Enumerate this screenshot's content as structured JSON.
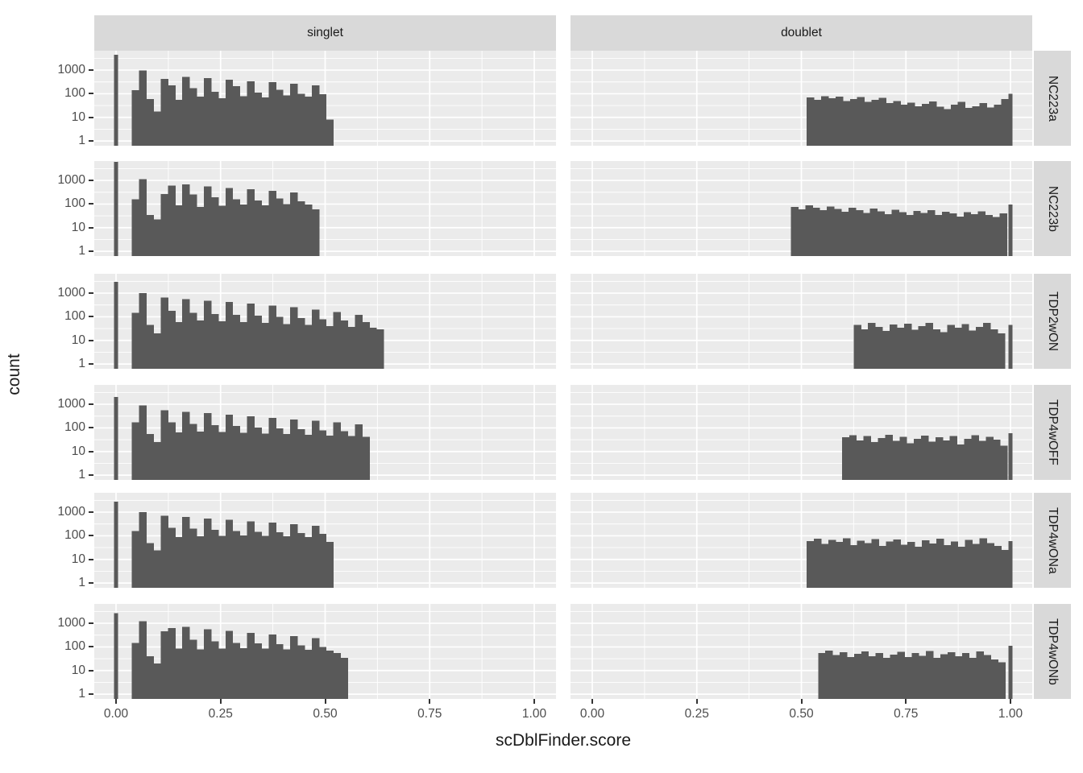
{
  "figure": {
    "x_title": "scDblFinder.score",
    "y_title": "count",
    "col_facets": [
      "singlet",
      "doublet"
    ],
    "row_facets": [
      "NC223a",
      "NC223b",
      "TDP2wON",
      "TDP4wOFF",
      "TDP4wONa",
      "TDP4wONb"
    ],
    "x_tick_labels": [
      "0.00",
      "0.25",
      "0.50",
      "0.75",
      "1.00"
    ],
    "y_tick_labels": [
      "1000",
      "100",
      "10",
      "1"
    ]
  },
  "colors": {
    "bar": "#595959",
    "panel_background": "#ebebeb",
    "gridline": "#ffffff",
    "strip_background": "#d9d9d9",
    "axis_text": "#4d4d4d",
    "title_text": "#1a1a1a",
    "tick_mark": "#333333"
  },
  "chart_data": {
    "type": "bar",
    "subtype": "faceted-histogram",
    "title": "",
    "xlabel": "scDblFinder.score",
    "ylabel": "count",
    "y_scale": "log10",
    "x_ticks": [
      0,
      0.25,
      0.5,
      0.75,
      1.0
    ],
    "x_minor_ticks": [
      0.125,
      0.375,
      0.625,
      0.875
    ],
    "y_ticks": [
      1,
      10,
      100,
      1000
    ],
    "y_minor_ticks_log10": [
      0.5,
      1.5,
      2.5,
      3.5
    ],
    "ylim_log10": [
      -0.2,
      3.82
    ],
    "xlim": [
      -0.055,
      1.055
    ],
    "grid": true,
    "legend": "none",
    "binwidth": 0.0172,
    "facet_cols": [
      "singlet",
      "doublet"
    ],
    "facet_rows": [
      "NC223a",
      "NC223b",
      "TDP2wON",
      "TDP4wOFF",
      "TDP4wONa",
      "TDP4wONb"
    ],
    "rows": [
      {
        "label": "NC223a",
        "singlet": {
          "zero_spike_count": 4500,
          "bins_start": 0.038,
          "counts": [
            140,
            950,
            60,
            18,
            420,
            230,
            55,
            520,
            170,
            75,
            460,
            120,
            65,
            390,
            210,
            80,
            340,
            110,
            70,
            310,
            150,
            85,
            270,
            100,
            75,
            230,
            95,
            8
          ]
        },
        "doublet": {
          "bins_start": 0.513,
          "counts": [
            70,
            55,
            80,
            65,
            75,
            50,
            60,
            72,
            45,
            55,
            68,
            40,
            50,
            35,
            42,
            30,
            38,
            48,
            28,
            22,
            35,
            45,
            25,
            30,
            40,
            26,
            34,
            60
          ],
          "spike_at_1_count": 100
        }
      },
      {
        "label": "NC223b",
        "singlet": {
          "zero_spike_count": 6000,
          "bins_start": 0.038,
          "counts": [
            160,
            1150,
            35,
            22,
            270,
            600,
            90,
            680,
            250,
            75,
            560,
            190,
            85,
            480,
            160,
            95,
            420,
            140,
            90,
            360,
            170,
            100,
            310,
            130,
            95,
            60
          ]
        },
        "doublet": {
          "bins_start": 0.475,
          "counts": [
            75,
            60,
            90,
            70,
            55,
            80,
            62,
            48,
            70,
            55,
            42,
            65,
            50,
            38,
            58,
            45,
            35,
            52,
            42,
            55,
            35,
            48,
            40,
            30,
            45,
            38,
            50,
            35,
            28,
            40
          ],
          "spike_at_1_count": 95
        }
      },
      {
        "label": "TDP2wON",
        "singlet": {
          "zero_spike_count": 3000,
          "bins_start": 0.038,
          "counts": [
            150,
            1000,
            45,
            20,
            650,
            180,
            60,
            560,
            150,
            70,
            480,
            130,
            65,
            420,
            120,
            60,
            360,
            110,
            55,
            300,
            100,
            50,
            250,
            90,
            45,
            200,
            80,
            40,
            160,
            70,
            38,
            120,
            60,
            35,
            30
          ]
        },
        "doublet": {
          "bins_start": 0.625,
          "counts": [
            45,
            30,
            55,
            38,
            25,
            48,
            35,
            52,
            28,
            40,
            55,
            30,
            22,
            45,
            35,
            50,
            26,
            38,
            55,
            30,
            20
          ],
          "spike_at_1_count": 45
        }
      },
      {
        "label": "TDP4wOFF",
        "singlet": {
          "zero_spike_count": 2000,
          "bins_start": 0.038,
          "counts": [
            170,
            900,
            55,
            25,
            560,
            170,
            65,
            480,
            150,
            70,
            420,
            130,
            68,
            360,
            120,
            62,
            310,
            105,
            58,
            270,
            95,
            55,
            230,
            88,
            52,
            200,
            80,
            48,
            170,
            72,
            45,
            140,
            42
          ]
        },
        "doublet": {
          "bins_start": 0.597,
          "counts": [
            40,
            50,
            30,
            45,
            25,
            38,
            52,
            28,
            42,
            22,
            35,
            48,
            26,
            40,
            30,
            45,
            20,
            35,
            50,
            28,
            42,
            32,
            18
          ],
          "spike_at_1_count": 60
        }
      },
      {
        "label": "TDP4wONa",
        "singlet": {
          "zero_spike_count": 2800,
          "bins_start": 0.038,
          "counts": [
            160,
            1000,
            50,
            24,
            700,
            220,
            90,
            620,
            200,
            95,
            540,
            180,
            100,
            470,
            160,
            105,
            410,
            150,
            100,
            360,
            140,
            95,
            310,
            130,
            90,
            270,
            120,
            55
          ]
        },
        "doublet": {
          "bins_start": 0.513,
          "counts": [
            60,
            75,
            45,
            68,
            55,
            80,
            40,
            62,
            50,
            72,
            38,
            58,
            70,
            42,
            55,
            35,
            65,
            48,
            75,
            40,
            58,
            35,
            68,
            45,
            80,
            50,
            38,
            25
          ],
          "spike_at_1_count": 60
        }
      },
      {
        "label": "TDP4wONb",
        "singlet": {
          "zero_spike_count": 2700,
          "bins_start": 0.038,
          "counts": [
            150,
            1200,
            40,
            20,
            460,
            620,
            85,
            700,
            200,
            80,
            560,
            170,
            85,
            470,
            150,
            90,
            400,
            140,
            85,
            340,
            130,
            80,
            290,
            115,
            75,
            240,
            100,
            70,
            55,
            35
          ]
        },
        "doublet": {
          "bins_start": 0.54,
          "counts": [
            55,
            70,
            45,
            60,
            38,
            52,
            65,
            40,
            55,
            35,
            48,
            62,
            38,
            55,
            42,
            68,
            35,
            50,
            60,
            40,
            55,
            35,
            65,
            45,
            30,
            22
          ],
          "spike_at_1_count": 110
        }
      }
    ]
  }
}
